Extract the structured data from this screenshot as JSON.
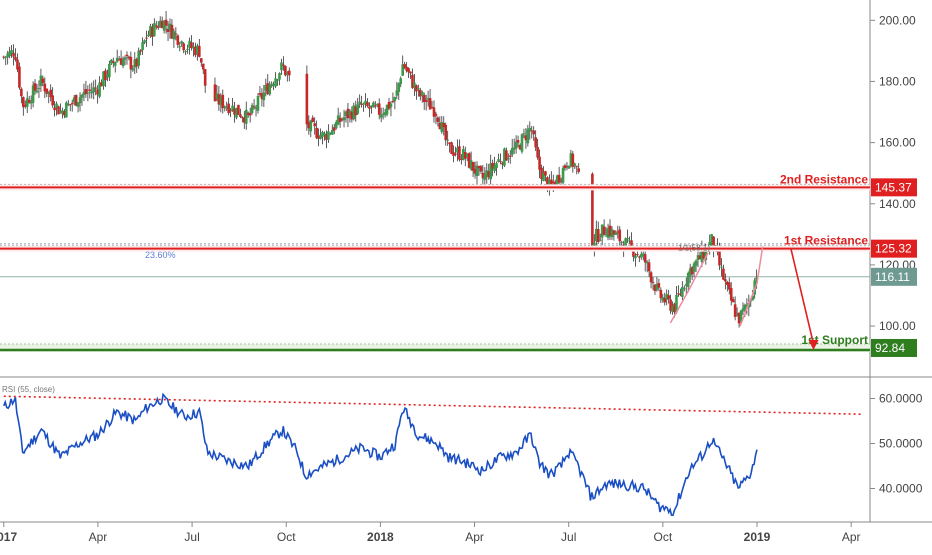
{
  "chart_data": [
    {
      "type": "candlestick",
      "title": "",
      "x_tick_labels": [
        "2017",
        "Apr",
        "Jul",
        "Oct",
        "2018",
        "Apr",
        "Jul",
        "Oct",
        "2019",
        "Apr"
      ],
      "x_tick_years": [
        2017.0,
        2017.25,
        2017.5,
        2017.75,
        2018.0,
        2018.25,
        2018.5,
        2018.75,
        2019.0,
        2019.25
      ],
      "x_range": [
        2016.99,
        2019.3
      ],
      "y_range": [
        84,
        205
      ],
      "y_ticks": [
        100,
        120,
        140,
        160,
        180,
        200
      ],
      "y_tick_labels": [
        "100.00",
        "120.00",
        "140.00",
        "160.00",
        "180.00",
        "200.00"
      ],
      "price_path": [
        [
          2017.0,
          188
        ],
        [
          2017.03,
          190
        ],
        [
          2017.05,
          172
        ],
        [
          2017.1,
          180
        ],
        [
          2017.15,
          170
        ],
        [
          2017.2,
          175
        ],
        [
          2017.25,
          178
        ],
        [
          2017.3,
          188
        ],
        [
          2017.35,
          185
        ],
        [
          2017.38,
          195
        ],
        [
          2017.42,
          200
        ],
        [
          2017.48,
          192
        ],
        [
          2017.52,
          190
        ],
        [
          2017.54,
          175
        ],
        [
          2017.6,
          172
        ],
        [
          2017.65,
          168
        ],
        [
          2017.7,
          178
        ],
        [
          2017.74,
          185
        ],
        [
          2017.78,
          176
        ],
        [
          2017.8,
          166
        ],
        [
          2017.85,
          162
        ],
        [
          2017.9,
          168
        ],
        [
          2017.95,
          172
        ],
        [
          2018.0,
          170
        ],
        [
          2018.04,
          174
        ],
        [
          2018.06,
          186
        ],
        [
          2018.1,
          176
        ],
        [
          2018.15,
          170
        ],
        [
          2018.18,
          158
        ],
        [
          2018.22,
          156
        ],
        [
          2018.27,
          148
        ],
        [
          2018.32,
          155
        ],
        [
          2018.36,
          158
        ],
        [
          2018.4,
          165
        ],
        [
          2018.42,
          152
        ],
        [
          2018.45,
          145
        ],
        [
          2018.48,
          150
        ],
        [
          2018.5,
          155
        ],
        [
          2018.52,
          152
        ],
        [
          2018.56,
          128
        ],
        [
          2018.6,
          132
        ],
        [
          2018.64,
          128
        ],
        [
          2018.7,
          122
        ],
        [
          2018.74,
          110
        ],
        [
          2018.78,
          106
        ],
        [
          2018.82,
          118
        ],
        [
          2018.86,
          124
        ],
        [
          2018.88,
          128
        ],
        [
          2018.92,
          112
        ],
        [
          2018.95,
          102
        ],
        [
          2018.98,
          108
        ],
        [
          2019.0,
          118
        ]
      ],
      "horizontal_levels": [
        {
          "label": "2nd Resistance",
          "value": 145.37,
          "value_label": "145.37",
          "color": "#e02020"
        },
        {
          "label": "1st Resistance",
          "value": 125.32,
          "value_label": "125.32",
          "color": "#e02020"
        },
        {
          "label": "1st Support",
          "value": 92.84,
          "value_label": "92.84",
          "color": "#2e7d1f"
        }
      ],
      "last_price": {
        "value": 116.11,
        "label": "116.11"
      },
      "fib_label": "23.60%",
      "fib_value": 126.9,
      "annotation": "1/1(58.1)",
      "projection_arrow": {
        "from": [
          2019.09,
          125.32
        ],
        "to": [
          2019.15,
          92.84
        ],
        "color": "#e02020"
      },
      "colors": {
        "up": "#3a9a4a",
        "down": "#c62828",
        "wick": "#333333"
      }
    },
    {
      "type": "line",
      "title": "RSI (55, close)",
      "y_range": [
        33,
        63
      ],
      "y_ticks": [
        40,
        50,
        60
      ],
      "y_tick_labels": [
        "40.0000",
        "50.0000",
        "60.0000"
      ],
      "rsi_path": [
        [
          2017.0,
          58
        ],
        [
          2017.03,
          60
        ],
        [
          2017.05,
          48
        ],
        [
          2017.1,
          53
        ],
        [
          2017.15,
          47
        ],
        [
          2017.2,
          50
        ],
        [
          2017.25,
          52
        ],
        [
          2017.3,
          57
        ],
        [
          2017.35,
          55
        ],
        [
          2017.38,
          58
        ],
        [
          2017.42,
          60
        ],
        [
          2017.48,
          56
        ],
        [
          2017.52,
          57
        ],
        [
          2017.54,
          48
        ],
        [
          2017.6,
          46
        ],
        [
          2017.65,
          45
        ],
        [
          2017.7,
          50
        ],
        [
          2017.74,
          53
        ],
        [
          2017.78,
          48
        ],
        [
          2017.8,
          43
        ],
        [
          2017.85,
          45
        ],
        [
          2017.9,
          47
        ],
        [
          2017.95,
          49
        ],
        [
          2018.0,
          47
        ],
        [
          2018.04,
          50
        ],
        [
          2018.06,
          58
        ],
        [
          2018.1,
          52
        ],
        [
          2018.15,
          50
        ],
        [
          2018.18,
          47
        ],
        [
          2018.22,
          46
        ],
        [
          2018.27,
          44
        ],
        [
          2018.32,
          47
        ],
        [
          2018.36,
          48
        ],
        [
          2018.4,
          52
        ],
        [
          2018.42,
          46
        ],
        [
          2018.45,
          43
        ],
        [
          2018.48,
          45
        ],
        [
          2018.5,
          48
        ],
        [
          2018.52,
          46
        ],
        [
          2018.56,
          38
        ],
        [
          2018.6,
          41
        ],
        [
          2018.64,
          41
        ],
        [
          2018.7,
          40
        ],
        [
          2018.74,
          36
        ],
        [
          2018.78,
          35
        ],
        [
          2018.82,
          44
        ],
        [
          2018.86,
          48
        ],
        [
          2018.88,
          51
        ],
        [
          2018.92,
          45
        ],
        [
          2018.95,
          40
        ],
        [
          2018.98,
          43
        ],
        [
          2019.0,
          48
        ]
      ],
      "trendline": {
        "from": [
          2017.0,
          60.5
        ],
        "to": [
          2019.28,
          56.5
        ],
        "color": "#e02020"
      },
      "line_color": "#1a4fc4"
    }
  ]
}
